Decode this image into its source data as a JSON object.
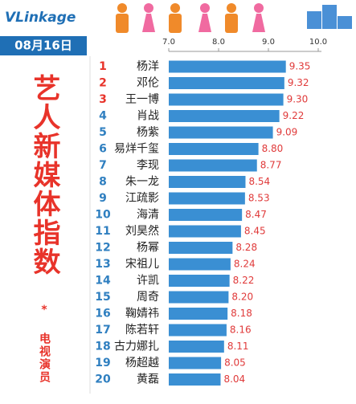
{
  "chart_data": {
    "type": "bar",
    "orientation": "horizontal",
    "logo": "VLinkage",
    "date": "08月16日",
    "title": "艺人新媒体指数",
    "subtitle": "* 电视演员",
    "ranks": [
      "1",
      "2",
      "3",
      "4",
      "5",
      "6",
      "7",
      "8",
      "9",
      "10",
      "11",
      "12",
      "13",
      "14",
      "15",
      "16",
      "17",
      "18",
      "19",
      "20"
    ],
    "categories": [
      "杨洋",
      "邓伦",
      "王一博",
      "肖战",
      "杨紫",
      "易烊千玺",
      "李现",
      "朱一龙",
      "江疏影",
      "海清",
      "刘昊然",
      "杨幂",
      "宋祖儿",
      "许凯",
      "周奇",
      "鞠婧祎",
      "陈若轩",
      "古力娜扎",
      "杨超越",
      "黄磊"
    ],
    "values": [
      9.35,
      9.32,
      9.3,
      9.22,
      9.09,
      8.8,
      8.77,
      8.54,
      8.53,
      8.47,
      8.45,
      8.28,
      8.24,
      8.22,
      8.2,
      8.18,
      8.16,
      8.11,
      8.05,
      8.04
    ],
    "value_labels": [
      "9.35",
      "9.32",
      "9.30",
      "9.22",
      "9.09",
      "8.80",
      "8.77",
      "8.54",
      "8.53",
      "8.47",
      "8.45",
      "8.28",
      "8.24",
      "8.22",
      "8.20",
      "8.18",
      "8.16",
      "8.11",
      "8.05",
      "8.04"
    ],
    "color": "#3a8fd3",
    "label_color": "#e03a3a",
    "top_rank_color": "#e8332a",
    "rank_color": "#2f7fc0",
    "xlim": [
      7.0,
      10.0
    ],
    "xticks": [
      {
        "value": 7,
        "label": "7.0"
      },
      {
        "value": 8,
        "label": "8.0"
      },
      {
        "value": 9,
        "label": "9.0"
      },
      {
        "value": 10,
        "label": "10.0"
      }
    ]
  }
}
